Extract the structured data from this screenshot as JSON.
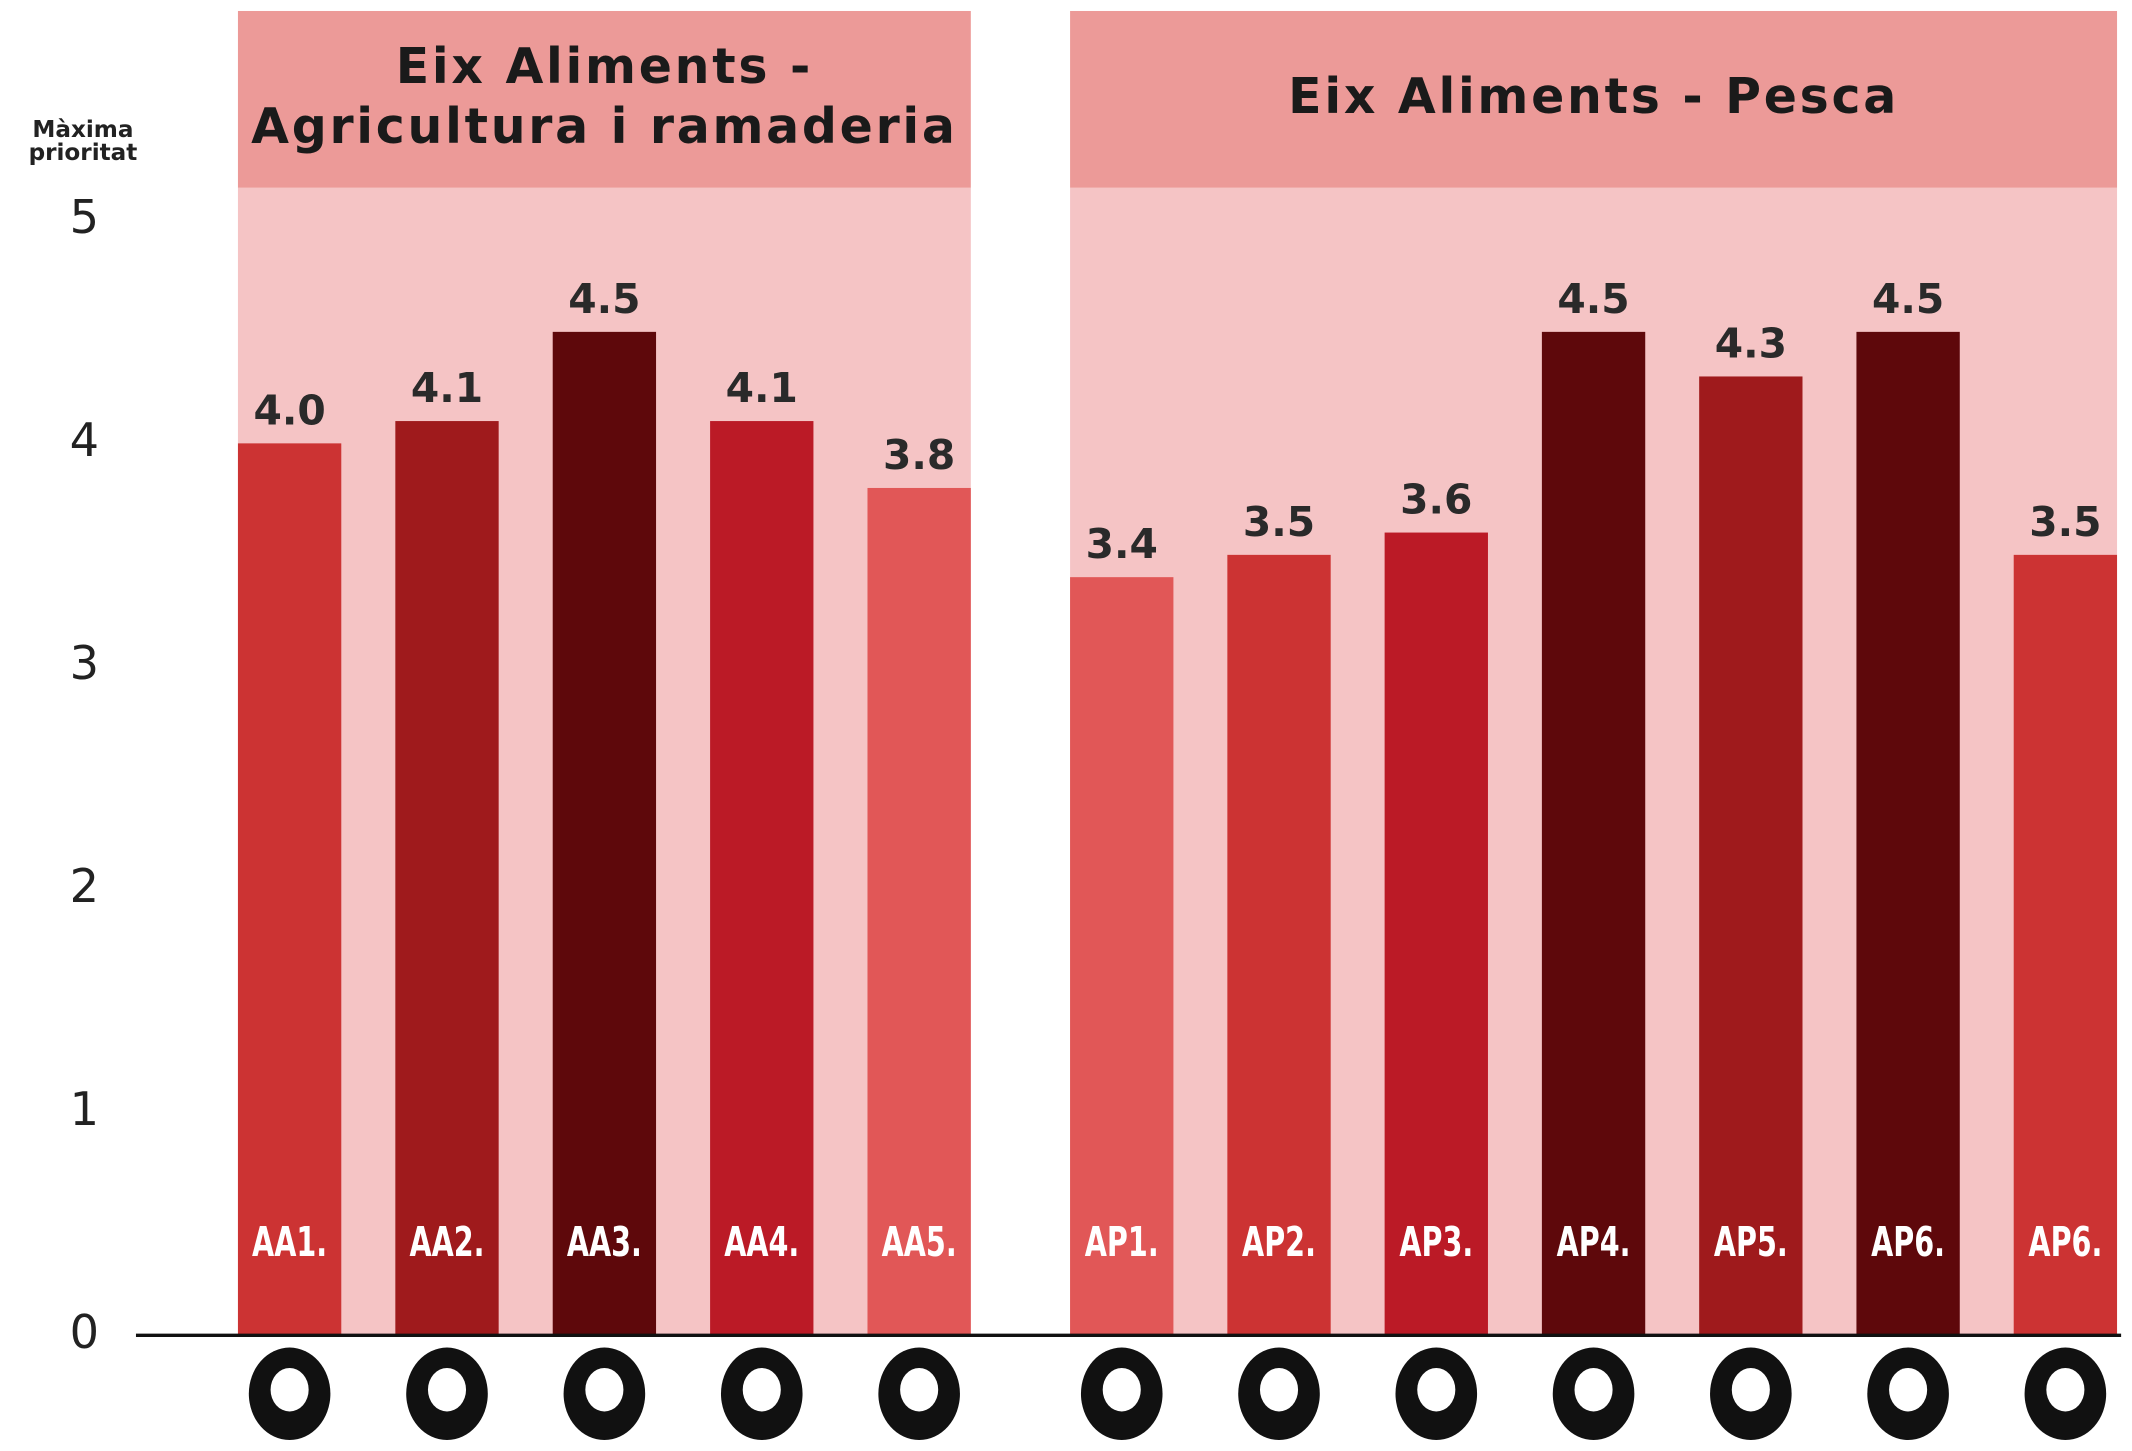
{
  "chart_data": {
    "type": "bar",
    "ylabel": [
      "Màxima",
      "prioritat"
    ],
    "ylim": [
      0,
      5
    ],
    "yticks": [
      0,
      1,
      2,
      3,
      4,
      5
    ],
    "groups": [
      {
        "title": [
          "Eix Aliments -",
          "Agricultura i ramaderia"
        ],
        "categories": [
          "AA1.",
          "AA2.",
          "AA3.",
          "AA4.",
          "AA5."
        ],
        "values": [
          4.0,
          4.1,
          4.5,
          4.1,
          3.8
        ],
        "value_labels": [
          "4.0",
          "4.1",
          "4.5",
          "4.1",
          "3.8"
        ],
        "colors": [
          "#cc3333",
          "#9f1a1c",
          "#5e080b",
          "#bb1a26",
          "#e15757"
        ]
      },
      {
        "title": [
          "Eix Aliments - Pesca"
        ],
        "categories": [
          "AP1.",
          "AP2.",
          "AP3.",
          "AP4.",
          "AP5.",
          "AP6.",
          "AP6."
        ],
        "values": [
          3.4,
          3.5,
          3.6,
          4.5,
          4.3,
          4.5,
          3.5
        ],
        "value_labels": [
          "3.4",
          "3.5",
          "3.6",
          "4.5",
          "4.3",
          "4.5",
          "3.5"
        ],
        "colors": [
          "#e15757",
          "#cc3333",
          "#bb1a26",
          "#5e080b",
          "#9f1a1c",
          "#5e080b",
          "#cc3333"
        ]
      }
    ]
  }
}
